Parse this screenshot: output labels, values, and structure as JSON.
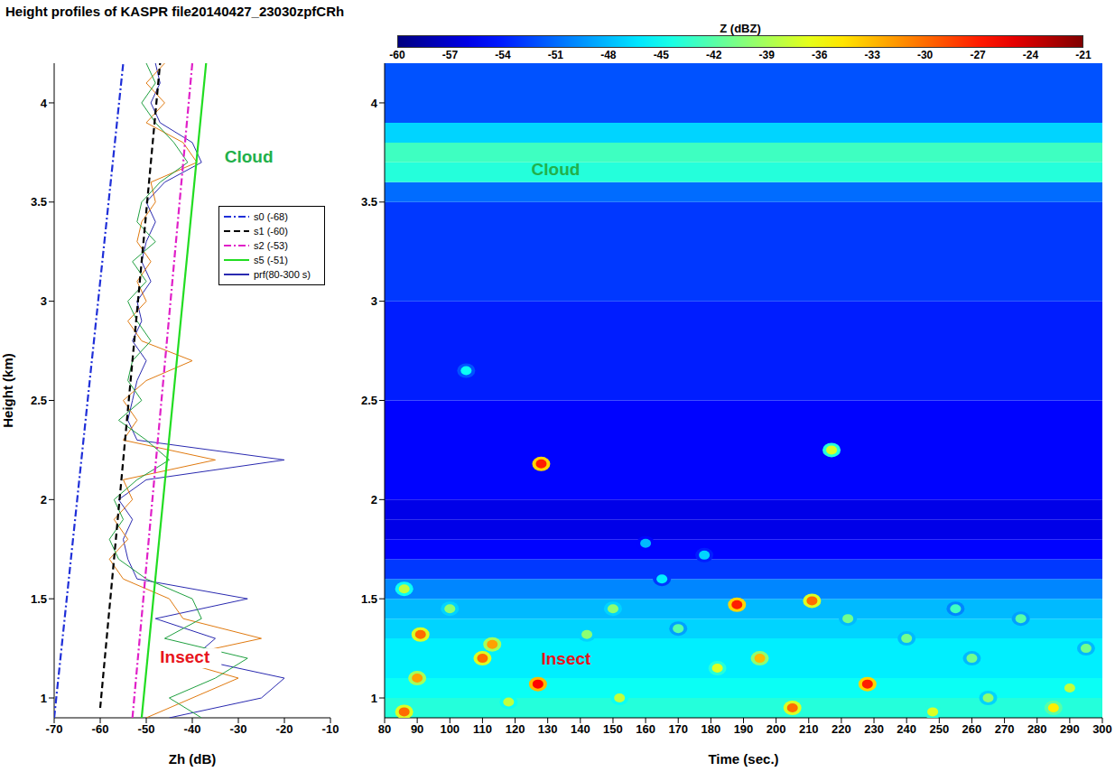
{
  "chart_data": [
    {
      "type": "line",
      "title": "Height profiles of KASPR file20140427_23030zpfCRh",
      "x_label": "Zh (dB)",
      "y_label": "Height (km)",
      "xlim": [
        -70,
        -10
      ],
      "xticks": [
        -70,
        -60,
        -50,
        -40,
        -30,
        -20,
        -10
      ],
      "ylim": [
        0.9,
        4.2
      ],
      "yticks": [
        1,
        1.5,
        2,
        2.5,
        3,
        3.5,
        4
      ],
      "legend": "right",
      "series": [
        {
          "name": "s0 (-68)",
          "color": "#1f2fd8",
          "line_style": "dashdot",
          "x": [
            -70,
            -55
          ],
          "y": [
            0.9,
            4.2
          ]
        },
        {
          "name": "s1 (-60)",
          "color": "#000000",
          "line_style": "dashed",
          "x": [
            -60,
            -47
          ],
          "y": [
            0.95,
            4.2
          ]
        },
        {
          "name": "s2 (-53)",
          "color": "#e020c8",
          "line_style": "dashdot",
          "x": [
            -53,
            -40
          ],
          "y": [
            0.9,
            4.2
          ]
        },
        {
          "name": "s5 (-51)",
          "color": "#22dd22",
          "line_style": "solid",
          "x": [
            -51,
            -37
          ],
          "y": [
            0.9,
            4.2
          ]
        }
      ],
      "profiles": {
        "name": "prf(80-300 s)",
        "color": "#2a2ab0",
        "line_style": "solid",
        "colors": [
          "#2a2ab0",
          "#e07a10",
          "#20a040"
        ],
        "height": [
          0.9,
          1.0,
          1.1,
          1.2,
          1.3,
          1.4,
          1.5,
          1.6,
          1.7,
          1.8,
          1.9,
          2.0,
          2.1,
          2.2,
          2.3,
          2.4,
          2.5,
          2.6,
          2.7,
          2.8,
          2.9,
          3.0,
          3.1,
          3.2,
          3.3,
          3.4,
          3.5,
          3.6,
          3.7,
          3.8,
          3.9,
          4.0,
          4.1,
          4.2
        ],
        "values": [
          [
            -45,
            -25,
            -20,
            -40,
            -35,
            -48,
            -28,
            -52,
            -54,
            -55,
            -53,
            -56,
            -50,
            -20,
            -52,
            -54,
            -53,
            -52,
            -50,
            -53,
            -51,
            -52,
            -49,
            -51,
            -50,
            -48,
            -50,
            -46,
            -38,
            -40,
            -47,
            -49,
            -47,
            -48
          ],
          [
            -50,
            -40,
            -30,
            -45,
            -25,
            -42,
            -45,
            -55,
            -58,
            -54,
            -57,
            -53,
            -55,
            -35,
            -55,
            -52,
            -55,
            -50,
            -40,
            -51,
            -54,
            -50,
            -52,
            -49,
            -52,
            -51,
            -48,
            -49,
            -39,
            -42,
            -50,
            -46,
            -50,
            -46
          ],
          [
            -38,
            -45,
            -35,
            -28,
            -46,
            -38,
            -40,
            -50,
            -56,
            -58,
            -55,
            -57,
            -52,
            -45,
            -50,
            -56,
            -51,
            -54,
            -53,
            -49,
            -52,
            -54,
            -50,
            -53,
            -48,
            -52,
            -51,
            -47,
            -41,
            -44,
            -48,
            -51,
            -48,
            -50
          ]
        ]
      },
      "annotations": [
        {
          "text": "Cloud",
          "x": -33,
          "y": 3.72,
          "color": "#22b04a"
        },
        {
          "text": "Insect",
          "x": -47,
          "y": 1.2,
          "color": "#e8141c"
        }
      ]
    },
    {
      "type": "heatmap",
      "x_label": "Time (sec.)",
      "xlim": [
        80,
        300
      ],
      "xticks": [
        80,
        90,
        100,
        110,
        120,
        130,
        140,
        150,
        160,
        170,
        180,
        190,
        200,
        210,
        220,
        230,
        240,
        250,
        260,
        270,
        280,
        290,
        300
      ],
      "ylim": [
        0.9,
        4.2
      ],
      "yticks": [
        1,
        1.5,
        2,
        2.5,
        3,
        3.5,
        4
      ],
      "colorbar": {
        "label": "Z (dBZ)",
        "range": [
          -60,
          -21
        ],
        "ticks": [
          -60,
          -57,
          -54,
          -51,
          -48,
          -45,
          -42,
          -39,
          -36,
          -33,
          -30,
          -27,
          -24,
          -21
        ]
      },
      "layers": [
        [
          0.9,
          1.0,
          -44
        ],
        [
          1.0,
          1.1,
          -45
        ],
        [
          1.1,
          1.2,
          -46
        ],
        [
          1.2,
          1.3,
          -46
        ],
        [
          1.3,
          1.4,
          -47
        ],
        [
          1.4,
          1.5,
          -48
        ],
        [
          1.5,
          1.6,
          -50
        ],
        [
          1.6,
          1.7,
          -53
        ],
        [
          1.7,
          1.8,
          -55
        ],
        [
          1.8,
          1.9,
          -56
        ],
        [
          1.9,
          2.0,
          -56
        ],
        [
          2.0,
          2.5,
          -55
        ],
        [
          2.5,
          3.0,
          -54
        ],
        [
          3.0,
          3.5,
          -53
        ],
        [
          3.5,
          3.6,
          -51
        ],
        [
          3.6,
          3.7,
          -44
        ],
        [
          3.7,
          3.8,
          -43
        ],
        [
          3.8,
          3.9,
          -47
        ],
        [
          3.9,
          4.2,
          -52
        ]
      ],
      "cells": [
        {
          "t": 105,
          "h": 2.65,
          "z": -45
        },
        {
          "t": 128,
          "h": 2.18,
          "z": -27
        },
        {
          "t": 217,
          "h": 2.25,
          "z": -37
        },
        {
          "t": 178,
          "h": 1.72,
          "z": -47
        },
        {
          "t": 160,
          "h": 1.78,
          "z": -48
        },
        {
          "t": 188,
          "h": 1.47,
          "z": -27
        },
        {
          "t": 211,
          "h": 1.49,
          "z": -30
        },
        {
          "t": 165,
          "h": 1.6,
          "z": -46
        },
        {
          "t": 91,
          "h": 1.32,
          "z": -30
        },
        {
          "t": 110,
          "h": 1.2,
          "z": -30
        },
        {
          "t": 113,
          "h": 1.27,
          "z": -32
        },
        {
          "t": 127,
          "h": 1.07,
          "z": -26
        },
        {
          "t": 90,
          "h": 1.1,
          "z": -32
        },
        {
          "t": 86,
          "h": 0.93,
          "z": -30
        },
        {
          "t": 195,
          "h": 1.2,
          "z": -33
        },
        {
          "t": 182,
          "h": 1.15,
          "z": -37
        },
        {
          "t": 228,
          "h": 1.07,
          "z": -27
        },
        {
          "t": 205,
          "h": 0.95,
          "z": -30
        },
        {
          "t": 285,
          "h": 0.95,
          "z": -35
        },
        {
          "t": 248,
          "h": 0.93,
          "z": -37
        },
        {
          "t": 118,
          "h": 0.98,
          "z": -38
        },
        {
          "t": 86,
          "h": 1.55,
          "z": -38
        },
        {
          "t": 142,
          "h": 1.32,
          "z": -40
        },
        {
          "t": 150,
          "h": 1.45,
          "z": -40
        },
        {
          "t": 170,
          "h": 1.35,
          "z": -42
        },
        {
          "t": 240,
          "h": 1.3,
          "z": -41
        },
        {
          "t": 260,
          "h": 1.2,
          "z": -41
        },
        {
          "t": 275,
          "h": 1.4,
          "z": -42
        },
        {
          "t": 295,
          "h": 1.25,
          "z": -41
        },
        {
          "t": 100,
          "h": 1.45,
          "z": -40
        },
        {
          "t": 152,
          "h": 1.0,
          "z": -38
        },
        {
          "t": 222,
          "h": 1.4,
          "z": -41
        },
        {
          "t": 265,
          "h": 1.0,
          "z": -40
        },
        {
          "t": 290,
          "h": 1.05,
          "z": -38
        },
        {
          "t": 255,
          "h": 1.45,
          "z": -43
        }
      ],
      "annotations": [
        {
          "text": "Cloud",
          "x": 125,
          "y": 3.66,
          "color": "#22b04a"
        },
        {
          "text": "Insect",
          "x": 128,
          "y": 1.19,
          "color": "#e8141c"
        }
      ]
    }
  ]
}
